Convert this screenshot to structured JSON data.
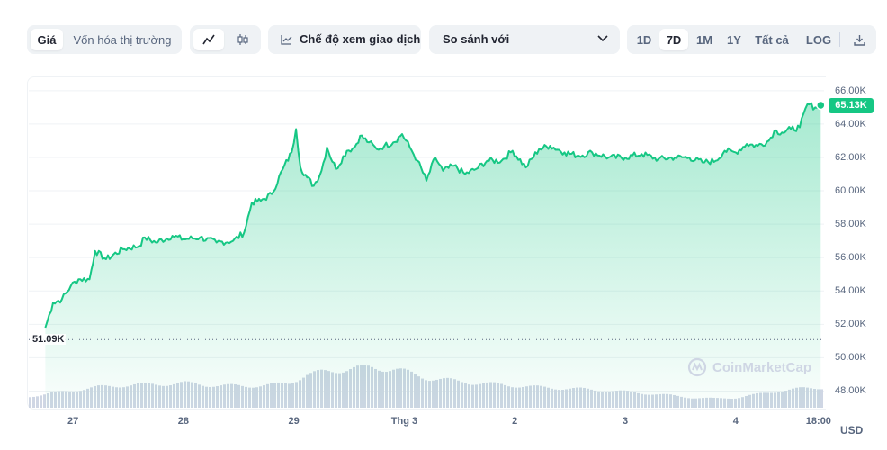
{
  "toolbar": {
    "type_tabs": [
      {
        "label": "Giá",
        "active": true
      },
      {
        "label": "Vốn hóa thị trường",
        "active": false
      }
    ],
    "chart_style": {
      "line_icon": "line-chart-icon",
      "candle_icon": "candlestick-icon",
      "active": "line"
    },
    "trading_view_label": "Chế độ xem giao dịch",
    "trading_view_icon": "trading-view-icon",
    "compare": {
      "placeholder": "So sánh với",
      "icon": "chevron-down-icon"
    },
    "ranges": [
      {
        "label": "1D",
        "active": false
      },
      {
        "label": "7D",
        "active": true
      },
      {
        "label": "1M",
        "active": false
      },
      {
        "label": "1Y",
        "active": false
      },
      {
        "label": "Tất cả",
        "active": false
      }
    ],
    "log_label": "LOG",
    "download_icon": "download-icon"
  },
  "chart_data": {
    "type": "area",
    "title": "",
    "currency": "USD",
    "line_color": "#16c784",
    "volume_color": "#cfd6e4",
    "ylim": [
      47000,
      66800
    ],
    "y_ticks": [
      "66.00K",
      "64.00K",
      "62.00K",
      "60.00K",
      "58.00K",
      "56.00K",
      "54.00K",
      "52.00K",
      "50.00K",
      "48.00K"
    ],
    "y_tick_values": [
      66000,
      64000,
      62000,
      60000,
      58000,
      56000,
      54000,
      52000,
      50000,
      48000
    ],
    "x_ticks": [
      "27",
      "28",
      "29",
      "Thg 3",
      "2",
      "3",
      "4",
      "18:00"
    ],
    "x_tick_days": [
      0.4,
      1.4,
      2.4,
      3.4,
      4.4,
      5.4,
      6.4,
      7.15
    ],
    "x_range_days": [
      0,
      7.2
    ],
    "current_price_label": "65.13K",
    "current_price": 65130,
    "baseline_label": "51.09K",
    "baseline_value": 51090,
    "price_points": [
      [
        0.15,
        51800
      ],
      [
        0.22,
        53300
      ],
      [
        0.3,
        53500
      ],
      [
        0.38,
        54300
      ],
      [
        0.45,
        54700
      ],
      [
        0.55,
        54700
      ],
      [
        0.6,
        56400
      ],
      [
        0.7,
        55900
      ],
      [
        0.85,
        56500
      ],
      [
        1.0,
        56700
      ],
      [
        1.05,
        57200
      ],
      [
        1.15,
        56900
      ],
      [
        1.3,
        57300
      ],
      [
        1.4,
        57100
      ],
      [
        1.55,
        57200
      ],
      [
        1.7,
        56900
      ],
      [
        1.85,
        57000
      ],
      [
        1.95,
        57500
      ],
      [
        2.02,
        59300
      ],
      [
        2.1,
        59400
      ],
      [
        2.2,
        59800
      ],
      [
        2.3,
        61300
      ],
      [
        2.38,
        62300
      ],
      [
        2.42,
        63700
      ],
      [
        2.46,
        61400
      ],
      [
        2.52,
        60800
      ],
      [
        2.58,
        60300
      ],
      [
        2.65,
        61200
      ],
      [
        2.7,
        62600
      ],
      [
        2.78,
        61300
      ],
      [
        2.88,
        62400
      ],
      [
        2.95,
        62600
      ],
      [
        3.0,
        63300
      ],
      [
        3.08,
        62900
      ],
      [
        3.15,
        62500
      ],
      [
        3.22,
        62700
      ],
      [
        3.3,
        62900
      ],
      [
        3.38,
        63400
      ],
      [
        3.45,
        62600
      ],
      [
        3.52,
        61800
      ],
      [
        3.6,
        60600
      ],
      [
        3.68,
        62000
      ],
      [
        3.75,
        61200
      ],
      [
        3.85,
        61500
      ],
      [
        3.95,
        61000
      ],
      [
        4.05,
        61300
      ],
      [
        4.15,
        61800
      ],
      [
        4.28,
        61800
      ],
      [
        4.38,
        62400
      ],
      [
        4.5,
        61400
      ],
      [
        4.62,
        62500
      ],
      [
        4.72,
        62700
      ],
      [
        4.85,
        62300
      ],
      [
        4.98,
        62100
      ],
      [
        5.1,
        62300
      ],
      [
        5.25,
        62000
      ],
      [
        5.4,
        62000
      ],
      [
        5.55,
        62200
      ],
      [
        5.7,
        61900
      ],
      [
        5.85,
        62000
      ],
      [
        5.98,
        62000
      ],
      [
        6.1,
        61700
      ],
      [
        6.22,
        61800
      ],
      [
        6.3,
        62400
      ],
      [
        6.4,
        62300
      ],
      [
        6.5,
        62800
      ],
      [
        6.6,
        62700
      ],
      [
        6.7,
        63000
      ],
      [
        6.75,
        63600
      ],
      [
        6.82,
        63500
      ],
      [
        6.9,
        63700
      ],
      [
        6.98,
        63800
      ],
      [
        7.05,
        65200
      ],
      [
        7.12,
        65000
      ],
      [
        7.17,
        65130
      ]
    ],
    "volume_points": [
      [
        0.0,
        0.25
      ],
      [
        0.3,
        0.35
      ],
      [
        0.6,
        0.45
      ],
      [
        0.9,
        0.5
      ],
      [
        1.2,
        0.52
      ],
      [
        1.4,
        0.54
      ],
      [
        1.6,
        0.5
      ],
      [
        1.8,
        0.48
      ],
      [
        2.0,
        0.48
      ],
      [
        2.2,
        0.5
      ],
      [
        2.35,
        0.55
      ],
      [
        2.5,
        0.72
      ],
      [
        2.7,
        0.8
      ],
      [
        2.9,
        0.86
      ],
      [
        3.1,
        0.88
      ],
      [
        3.3,
        0.85
      ],
      [
        3.45,
        0.75
      ],
      [
        3.6,
        0.65
      ],
      [
        3.8,
        0.6
      ],
      [
        4.0,
        0.55
      ],
      [
        4.3,
        0.5
      ],
      [
        4.6,
        0.45
      ],
      [
        4.9,
        0.42
      ],
      [
        5.2,
        0.38
      ],
      [
        5.5,
        0.33
      ],
      [
        5.8,
        0.27
      ],
      [
        6.0,
        0.22
      ],
      [
        6.2,
        0.2
      ],
      [
        6.4,
        0.22
      ],
      [
        6.6,
        0.3
      ],
      [
        6.8,
        0.38
      ],
      [
        7.0,
        0.42
      ],
      [
        7.2,
        0.45
      ]
    ]
  },
  "watermark_text": "CoinMarketCap",
  "watermark_icon": "coinmarketcap-logo-icon"
}
